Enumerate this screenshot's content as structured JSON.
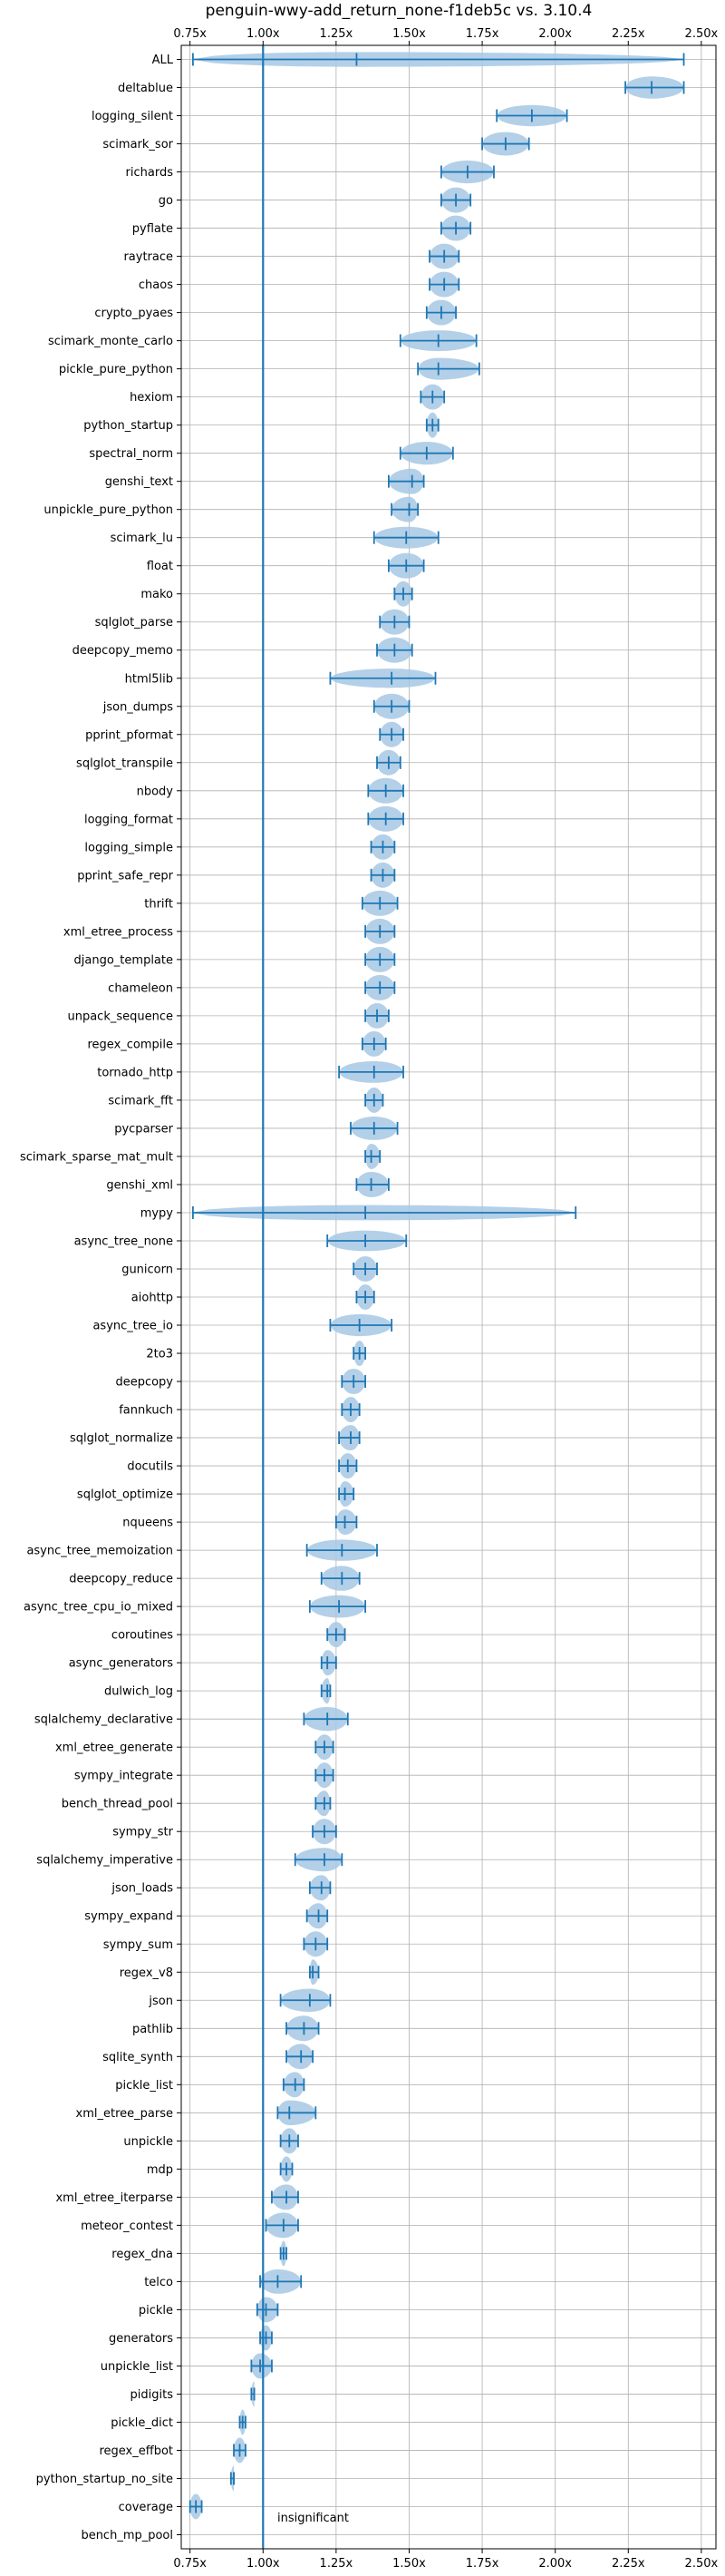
{
  "chart_data": {
    "type": "violin",
    "title": "penguin-wwy-add_return_none-f1deb5c vs. 3.10.4",
    "xlabel": "",
    "ylabel": "",
    "xlim": [
      0.72,
      2.55
    ],
    "x_ticks": [
      0.75,
      1.0,
      1.25,
      1.5,
      1.75,
      2.0,
      2.25,
      2.5
    ],
    "x_tick_labels": [
      "0.75x",
      "1.00x",
      "1.25x",
      "1.50x",
      "1.75x",
      "2.00x",
      "2.25x",
      "2.50x"
    ],
    "reference_line": 1.0,
    "annotation": "insignificant",
    "grid": true,
    "colors": {
      "violin": "#a6c8e4",
      "line": "#1f77b4",
      "grid": "#b0b0b0"
    },
    "series": [
      {
        "name": "ALL",
        "min": 0.76,
        "median": 1.32,
        "max": 2.44
      },
      {
        "name": "deltablue",
        "min": 2.24,
        "median": 2.33,
        "max": 2.44
      },
      {
        "name": "logging_silent",
        "min": 1.8,
        "median": 1.92,
        "max": 2.04
      },
      {
        "name": "scimark_sor",
        "min": 1.75,
        "median": 1.83,
        "max": 1.91
      },
      {
        "name": "richards",
        "min": 1.61,
        "median": 1.7,
        "max": 1.79
      },
      {
        "name": "go",
        "min": 1.61,
        "median": 1.66,
        "max": 1.71
      },
      {
        "name": "pyflate",
        "min": 1.61,
        "median": 1.66,
        "max": 1.71
      },
      {
        "name": "raytrace",
        "min": 1.57,
        "median": 1.62,
        "max": 1.67
      },
      {
        "name": "chaos",
        "min": 1.57,
        "median": 1.62,
        "max": 1.67
      },
      {
        "name": "crypto_pyaes",
        "min": 1.56,
        "median": 1.61,
        "max": 1.66
      },
      {
        "name": "scimark_monte_carlo",
        "min": 1.47,
        "median": 1.6,
        "max": 1.73
      },
      {
        "name": "pickle_pure_python",
        "min": 1.53,
        "median": 1.6,
        "max": 1.74
      },
      {
        "name": "hexiom",
        "min": 1.54,
        "median": 1.58,
        "max": 1.62
      },
      {
        "name": "python_startup",
        "min": 1.56,
        "median": 1.58,
        "max": 1.6
      },
      {
        "name": "spectral_norm",
        "min": 1.47,
        "median": 1.56,
        "max": 1.65
      },
      {
        "name": "genshi_text",
        "min": 1.43,
        "median": 1.51,
        "max": 1.55
      },
      {
        "name": "unpickle_pure_python",
        "min": 1.44,
        "median": 1.5,
        "max": 1.53
      },
      {
        "name": "scimark_lu",
        "min": 1.38,
        "median": 1.49,
        "max": 1.6
      },
      {
        "name": "float",
        "min": 1.43,
        "median": 1.49,
        "max": 1.55
      },
      {
        "name": "mako",
        "min": 1.45,
        "median": 1.48,
        "max": 1.51
      },
      {
        "name": "sqlglot_parse",
        "min": 1.4,
        "median": 1.45,
        "max": 1.5
      },
      {
        "name": "deepcopy_memo",
        "min": 1.39,
        "median": 1.45,
        "max": 1.51
      },
      {
        "name": "html5lib",
        "min": 1.23,
        "median": 1.44,
        "max": 1.59
      },
      {
        "name": "json_dumps",
        "min": 1.38,
        "median": 1.44,
        "max": 1.5
      },
      {
        "name": "pprint_pformat",
        "min": 1.4,
        "median": 1.44,
        "max": 1.48
      },
      {
        "name": "sqlglot_transpile",
        "min": 1.39,
        "median": 1.43,
        "max": 1.47
      },
      {
        "name": "nbody",
        "min": 1.36,
        "median": 1.42,
        "max": 1.48
      },
      {
        "name": "logging_format",
        "min": 1.36,
        "median": 1.42,
        "max": 1.48
      },
      {
        "name": "logging_simple",
        "min": 1.37,
        "median": 1.41,
        "max": 1.45
      },
      {
        "name": "pprint_safe_repr",
        "min": 1.37,
        "median": 1.41,
        "max": 1.45
      },
      {
        "name": "thrift",
        "min": 1.34,
        "median": 1.4,
        "max": 1.46
      },
      {
        "name": "xml_etree_process",
        "min": 1.35,
        "median": 1.4,
        "max": 1.45
      },
      {
        "name": "django_template",
        "min": 1.35,
        "median": 1.4,
        "max": 1.45
      },
      {
        "name": "chameleon",
        "min": 1.35,
        "median": 1.4,
        "max": 1.45
      },
      {
        "name": "unpack_sequence",
        "min": 1.35,
        "median": 1.39,
        "max": 1.43
      },
      {
        "name": "regex_compile",
        "min": 1.34,
        "median": 1.38,
        "max": 1.42
      },
      {
        "name": "tornado_http",
        "min": 1.26,
        "median": 1.38,
        "max": 1.48
      },
      {
        "name": "scimark_fft",
        "min": 1.35,
        "median": 1.38,
        "max": 1.41
      },
      {
        "name": "pycparser",
        "min": 1.3,
        "median": 1.38,
        "max": 1.46
      },
      {
        "name": "scimark_sparse_mat_mult",
        "min": 1.35,
        "median": 1.37,
        "max": 1.4
      },
      {
        "name": "genshi_xml",
        "min": 1.32,
        "median": 1.37,
        "max": 1.43
      },
      {
        "name": "mypy",
        "min": 0.76,
        "median": 1.35,
        "max": 2.07
      },
      {
        "name": "async_tree_none",
        "min": 1.22,
        "median": 1.35,
        "max": 1.49
      },
      {
        "name": "gunicorn",
        "min": 1.31,
        "median": 1.35,
        "max": 1.39
      },
      {
        "name": "aiohttp",
        "min": 1.32,
        "median": 1.35,
        "max": 1.38
      },
      {
        "name": "async_tree_io",
        "min": 1.23,
        "median": 1.33,
        "max": 1.44
      },
      {
        "name": "2to3",
        "min": 1.31,
        "median": 1.33,
        "max": 1.35
      },
      {
        "name": "deepcopy",
        "min": 1.27,
        "median": 1.31,
        "max": 1.35
      },
      {
        "name": "fannkuch",
        "min": 1.27,
        "median": 1.3,
        "max": 1.33
      },
      {
        "name": "sqlglot_normalize",
        "min": 1.26,
        "median": 1.3,
        "max": 1.33
      },
      {
        "name": "docutils",
        "min": 1.26,
        "median": 1.29,
        "max": 1.32
      },
      {
        "name": "sqlglot_optimize",
        "min": 1.26,
        "median": 1.28,
        "max": 1.31
      },
      {
        "name": "nqueens",
        "min": 1.25,
        "median": 1.28,
        "max": 1.32
      },
      {
        "name": "async_tree_memoization",
        "min": 1.15,
        "median": 1.27,
        "max": 1.39
      },
      {
        "name": "deepcopy_reduce",
        "min": 1.2,
        "median": 1.27,
        "max": 1.33
      },
      {
        "name": "async_tree_cpu_io_mixed",
        "min": 1.16,
        "median": 1.26,
        "max": 1.35
      },
      {
        "name": "coroutines",
        "min": 1.22,
        "median": 1.25,
        "max": 1.28
      },
      {
        "name": "async_generators",
        "min": 1.2,
        "median": 1.22,
        "max": 1.25
      },
      {
        "name": "dulwich_log",
        "min": 1.2,
        "median": 1.22,
        "max": 1.23
      },
      {
        "name": "sqlalchemy_declarative",
        "min": 1.14,
        "median": 1.22,
        "max": 1.29
      },
      {
        "name": "xml_etree_generate",
        "min": 1.18,
        "median": 1.21,
        "max": 1.24
      },
      {
        "name": "sympy_integrate",
        "min": 1.18,
        "median": 1.21,
        "max": 1.24
      },
      {
        "name": "bench_thread_pool",
        "min": 1.18,
        "median": 1.21,
        "max": 1.23
      },
      {
        "name": "sympy_str",
        "min": 1.17,
        "median": 1.21,
        "max": 1.25
      },
      {
        "name": "sqlalchemy_imperative",
        "min": 1.11,
        "median": 1.21,
        "max": 1.27
      },
      {
        "name": "json_loads",
        "min": 1.16,
        "median": 1.2,
        "max": 1.23
      },
      {
        "name": "sympy_expand",
        "min": 1.15,
        "median": 1.19,
        "max": 1.22
      },
      {
        "name": "sympy_sum",
        "min": 1.14,
        "median": 1.18,
        "max": 1.22
      },
      {
        "name": "regex_v8",
        "min": 1.16,
        "median": 1.17,
        "max": 1.19
      },
      {
        "name": "json",
        "min": 1.06,
        "median": 1.16,
        "max": 1.23
      },
      {
        "name": "pathlib",
        "min": 1.08,
        "median": 1.14,
        "max": 1.19
      },
      {
        "name": "sqlite_synth",
        "min": 1.08,
        "median": 1.13,
        "max": 1.17
      },
      {
        "name": "pickle_list",
        "min": 1.07,
        "median": 1.11,
        "max": 1.14
      },
      {
        "name": "xml_etree_parse",
        "min": 1.05,
        "median": 1.09,
        "max": 1.18
      },
      {
        "name": "unpickle",
        "min": 1.06,
        "median": 1.09,
        "max": 1.12
      },
      {
        "name": "mdp",
        "min": 1.06,
        "median": 1.08,
        "max": 1.1
      },
      {
        "name": "xml_etree_iterparse",
        "min": 1.03,
        "median": 1.08,
        "max": 1.12
      },
      {
        "name": "meteor_contest",
        "min": 1.01,
        "median": 1.07,
        "max": 1.12
      },
      {
        "name": "regex_dna",
        "min": 1.06,
        "median": 1.07,
        "max": 1.08
      },
      {
        "name": "telco",
        "min": 0.99,
        "median": 1.05,
        "max": 1.13
      },
      {
        "name": "pickle",
        "min": 0.98,
        "median": 1.01,
        "max": 1.05
      },
      {
        "name": "generators",
        "min": 0.99,
        "median": 1.01,
        "max": 1.03
      },
      {
        "name": "unpickle_list",
        "min": 0.96,
        "median": 0.99,
        "max": 1.03
      },
      {
        "name": "pidigits",
        "min": 0.96,
        "median": 0.97,
        "max": 0.97
      },
      {
        "name": "pickle_dict",
        "min": 0.92,
        "median": 0.93,
        "max": 0.94
      },
      {
        "name": "regex_effbot",
        "min": 0.9,
        "median": 0.92,
        "max": 0.94
      },
      {
        "name": "python_startup_no_site",
        "min": 0.89,
        "median": 0.9,
        "max": 0.9
      },
      {
        "name": "coverage",
        "min": 0.75,
        "median": 0.77,
        "max": 0.79
      },
      {
        "name": "bench_mp_pool",
        "min": null,
        "median": null,
        "max": null
      }
    ]
  }
}
